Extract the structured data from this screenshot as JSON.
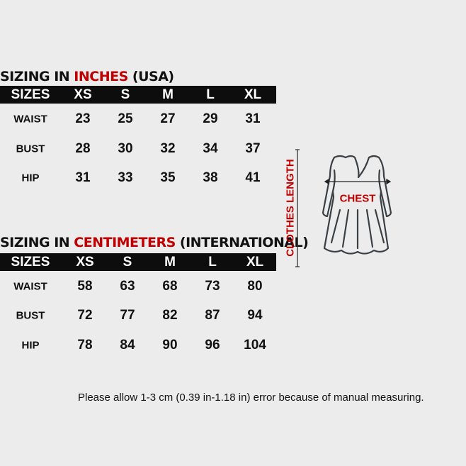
{
  "inches": {
    "title_prefix": "SIZING IN ",
    "title_highlight": "INCHES",
    "title_suffix": " (USA)",
    "headers": [
      "SIZES",
      "XS",
      "S",
      "M",
      "L",
      "XL"
    ],
    "rows": [
      {
        "label": "WAIST",
        "values": [
          "23",
          "25",
          "27",
          "29",
          "31"
        ]
      },
      {
        "label": "BUST",
        "values": [
          "28",
          "30",
          "32",
          "34",
          "37"
        ]
      },
      {
        "label": "HIP",
        "values": [
          "31",
          "33",
          "35",
          "38",
          "41"
        ]
      }
    ]
  },
  "cm": {
    "title_prefix": "SIZING IN ",
    "title_highlight": "CENTIMETERS",
    "title_suffix": " (INTERNATIONAL)",
    "headers": [
      "SIZES",
      "XS",
      "S",
      "M",
      "L",
      "XL"
    ],
    "rows": [
      {
        "label": "WAIST",
        "values": [
          "58",
          "63",
          "68",
          "73",
          "80"
        ]
      },
      {
        "label": "BUST",
        "values": [
          "72",
          "77",
          "82",
          "87",
          "94"
        ]
      },
      {
        "label": "HIP",
        "values": [
          "78",
          "84",
          "90",
          "96",
          "104"
        ]
      }
    ]
  },
  "diagram": {
    "length_label": "CLOTHES LENGTH",
    "chest_label": "CHEST",
    "icon": "dress-icon"
  },
  "note": "Please allow 1-3 cm (0.39 in-1.18 in) error because of manual measuring.",
  "colors": {
    "accent": "#c00000",
    "header_bg": "#0d0d0d",
    "background": "#ececec"
  }
}
